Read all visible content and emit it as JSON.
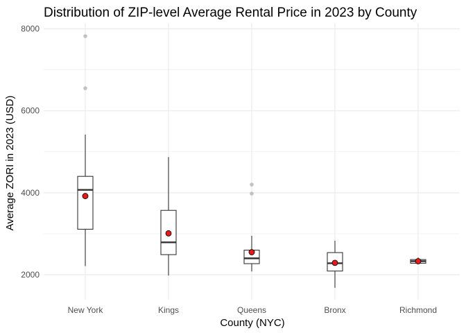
{
  "chart_data": {
    "type": "boxplot",
    "title": "Distribution of ZIP-level Average Rental Price in 2023 by County",
    "xlabel": "County (NYC)",
    "ylabel": "Average ZORI in 2023 (USD)",
    "ylim": [
      1350,
      8250
    ],
    "yticks": [
      2000,
      4000,
      6000,
      8000
    ],
    "grid": true,
    "categories": [
      "New York",
      "Kings",
      "Queens",
      "Bronx",
      "Richmond"
    ],
    "series": [
      {
        "category": "New York",
        "whisker_low": 2210,
        "q1": 3110,
        "median": 4070,
        "q3": 4400,
        "whisker_high": 5420,
        "mean": 3920,
        "outliers": [
          6550,
          7820
        ]
      },
      {
        "category": "Kings",
        "whisker_low": 1980,
        "q1": 2490,
        "median": 2790,
        "q3": 3570,
        "whisker_high": 4870,
        "mean": 3010,
        "outliers": []
      },
      {
        "category": "Queens",
        "whisker_low": 2080,
        "q1": 2270,
        "median": 2400,
        "q3": 2600,
        "whisker_high": 2950,
        "mean": 2550,
        "outliers": [
          3980,
          4200
        ]
      },
      {
        "category": "Bronx",
        "whisker_low": 1680,
        "q1": 2090,
        "median": 2280,
        "q3": 2540,
        "whisker_high": 2830,
        "mean": 2290,
        "outliers": []
      },
      {
        "category": "Richmond",
        "whisker_low": 2260,
        "q1": 2280,
        "median": 2330,
        "q3": 2370,
        "whisker_high": 2420,
        "mean": 2330,
        "outliers": []
      }
    ],
    "colors": {
      "mean_fill": "#e41a1c",
      "outlier": "#bdbdbd",
      "grid": "#ebebeb",
      "box_stroke": "#333333"
    }
  }
}
